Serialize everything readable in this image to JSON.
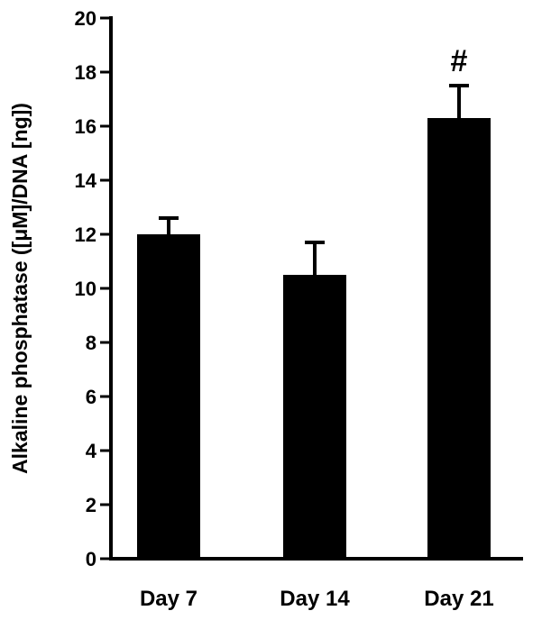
{
  "chart_data": {
    "type": "bar",
    "title": "",
    "xlabel": "",
    "ylabel": "Alkaline phosphatase ([μM]/DNA [ng])",
    "categories": [
      "Day 7",
      "Day 14",
      "Day 21"
    ],
    "values": [
      12.0,
      10.5,
      16.3
    ],
    "errors": [
      0.6,
      1.2,
      1.2
    ],
    "annotations": [
      "",
      "",
      "#"
    ],
    "ylim": [
      0,
      20
    ],
    "yticks": [
      0,
      2,
      4,
      6,
      8,
      10,
      12,
      14,
      16,
      18,
      20
    ],
    "grid": false,
    "legend": "none",
    "bar_color": "#000000"
  }
}
